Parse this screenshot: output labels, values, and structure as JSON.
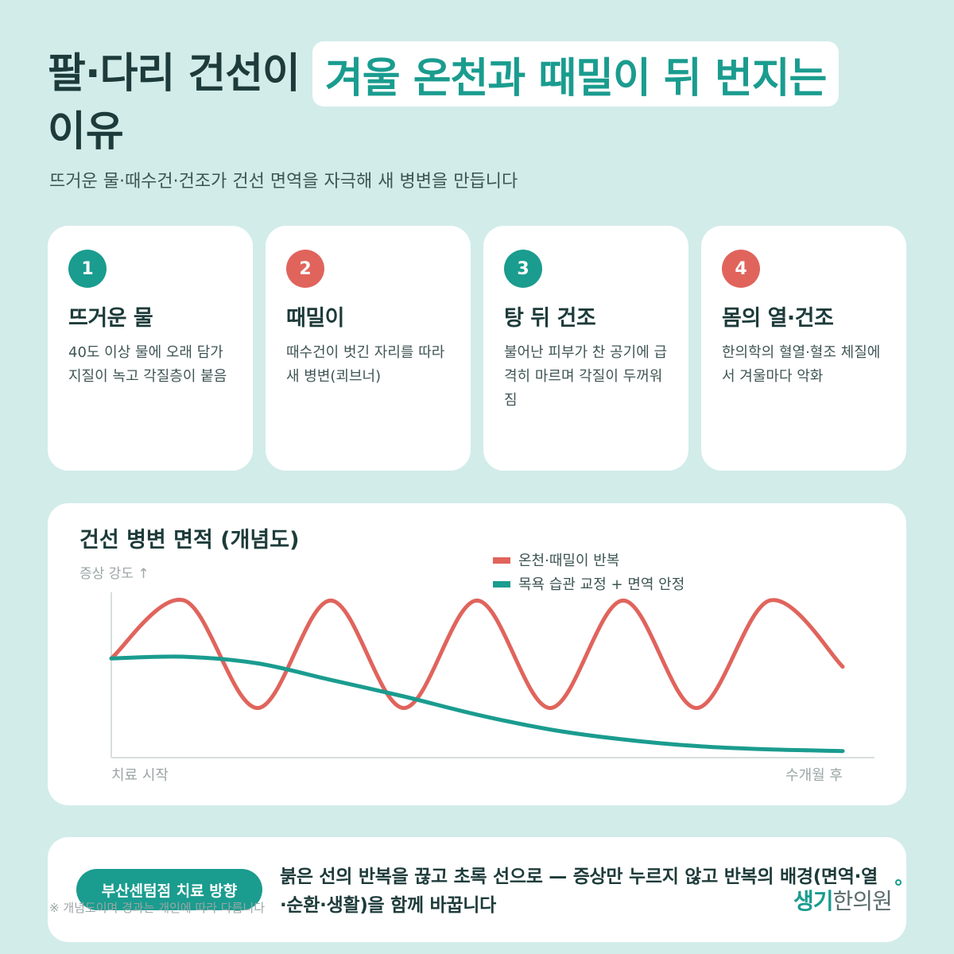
{
  "header": {
    "title_part1": "팔·다리 건선이",
    "title_highlight": "겨울 온천과 때밀이 뒤 번지는",
    "title_part2": "이유",
    "subtitle": "뜨거운 물·때수건·건조가 건선 면역을 자극해 새 병변을 만듭니다"
  },
  "cards": [
    {
      "num": "1",
      "title": "뜨거운 물",
      "text": "40도 이상 물에 오래 담가 지질이 녹고 각질층이 붙음",
      "color": "#1a9c8f"
    },
    {
      "num": "2",
      "title": "때밀이",
      "text": "때수건이 벗긴 자리를 따라 새 병변(쾨브너)",
      "color": "#e0645c"
    },
    {
      "num": "3",
      "title": "탕 뒤 건조",
      "text": "불어난 피부가 찬 공기에 급격히 마르며 각질이 두꺼워짐",
      "color": "#1a9c8f"
    },
    {
      "num": "4",
      "title": "몸의 열·건조",
      "text": "한의학의 혈열·혈조 체질에서 겨울마다 악화",
      "color": "#e0645c"
    }
  ],
  "chart_data": {
    "type": "line",
    "title": "건선 병변 면적 (개념도)",
    "ylabel": "증상 강도 ↑",
    "x_start_label": "치료 시작",
    "x_end_label": "수개월 후",
    "x": [
      0,
      0.1,
      0.2,
      0.3,
      0.4,
      0.5,
      0.6,
      0.7,
      0.8,
      0.9,
      1.0
    ],
    "series": [
      {
        "name": "온천·때밀이 반복",
        "color": "#e0645c",
        "values": [
          0.6,
          0.95,
          0.3,
          0.95,
          0.3,
          0.95,
          0.3,
          0.95,
          0.3,
          0.95,
          0.55
        ]
      },
      {
        "name": "목욕 습관 교정 + 면역 안정",
        "color": "#1a9c8f",
        "values": [
          0.6,
          0.61,
          0.57,
          0.47,
          0.37,
          0.26,
          0.17,
          0.11,
          0.07,
          0.05,
          0.04
        ]
      }
    ],
    "legend": "top-right",
    "grid": false
  },
  "bottom": {
    "pill": "부산센텀점 치료 방향",
    "text": "붉은 선의 반복을 끊고 초록 선으로 — 증상만 누르지 않고 반복의 배경(면역·열·순환·생활)을 함께 바꿉니다"
  },
  "note": "※ 개념도이며 경과는 개인에 따라 다릅니다",
  "logo": {
    "part1": "생기",
    "part2": "한의원"
  }
}
